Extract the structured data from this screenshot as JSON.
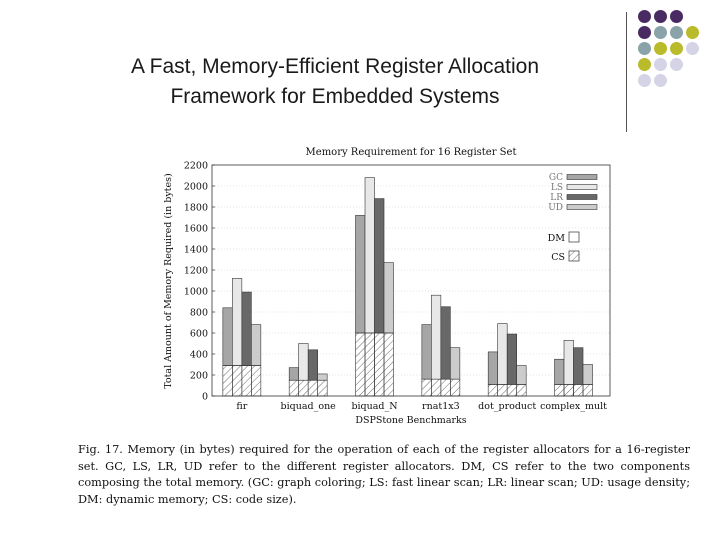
{
  "slide": {
    "title_line1": "A Fast, Memory-Efficient Register Allocation",
    "title_line2": "Framework for Embedded Systems"
  },
  "decor": {
    "dot_colors": {
      "purple": "#4a2a63",
      "teal": "#8aa3a8",
      "olive": "#b9bb2a",
      "lavender": "#d5d4e6"
    },
    "dot_grid": [
      [
        "purple",
        "purple",
        "purple",
        null
      ],
      [
        "purple",
        "teal",
        "teal",
        "olive"
      ],
      [
        "teal",
        "olive",
        "olive",
        "lavender"
      ],
      [
        "olive",
        "lavender",
        "lavender",
        null
      ],
      [
        "lavender",
        "lavender",
        null,
        null
      ]
    ]
  },
  "chart_data": {
    "type": "bar",
    "title": "Memory Requirement for 16 Register Set",
    "xlabel": "DSPStone Benchmarks",
    "ylabel": "Total Amount of Memory Required (in bytes)",
    "ylim": [
      0,
      2200
    ],
    "yticks": [
      0,
      200,
      400,
      600,
      800,
      1000,
      1200,
      1400,
      1600,
      1800,
      2000,
      2200
    ],
    "grid": true,
    "categories": [
      "fir",
      "biquad_one",
      "biquad_N",
      "rnat1x3",
      "dot_product",
      "complex_mult"
    ],
    "series": [
      {
        "name": "GC",
        "color": "#a6a6a6",
        "values": [
          840,
          270,
          1720,
          680,
          420,
          350
        ],
        "code_size": [
          290,
          150,
          600,
          160,
          110,
          110
        ]
      },
      {
        "name": "LS",
        "color": "#e8e8e8",
        "values": [
          1120,
          500,
          2080,
          960,
          690,
          530
        ],
        "code_size": [
          290,
          150,
          600,
          160,
          110,
          110
        ]
      },
      {
        "name": "LR",
        "color": "#686868",
        "values": [
          990,
          440,
          1880,
          850,
          590,
          460
        ],
        "code_size": [
          290,
          150,
          600,
          160,
          110,
          110
        ]
      },
      {
        "name": "UD",
        "color": "#cccccc",
        "values": [
          680,
          210,
          1270,
          460,
          290,
          300
        ],
        "code_size": [
          290,
          150,
          600,
          160,
          110,
          110
        ]
      }
    ],
    "components": [
      {
        "name": "DM",
        "fill": "white"
      },
      {
        "name": "CS",
        "fill": "hatched"
      }
    ],
    "legend_position": "top-right"
  },
  "caption": {
    "text": "Fig. 17.   Memory (in bytes) required for the operation of each of the register allocators for a 16-register set. GC, LS, LR, UD refer to the different register allocators. DM, CS refer to the two components composing the total memory. (GC: graph coloring; LS: fast linear scan; LR: linear scan; UD: usage density; DM: dynamic memory; CS: code size)."
  }
}
